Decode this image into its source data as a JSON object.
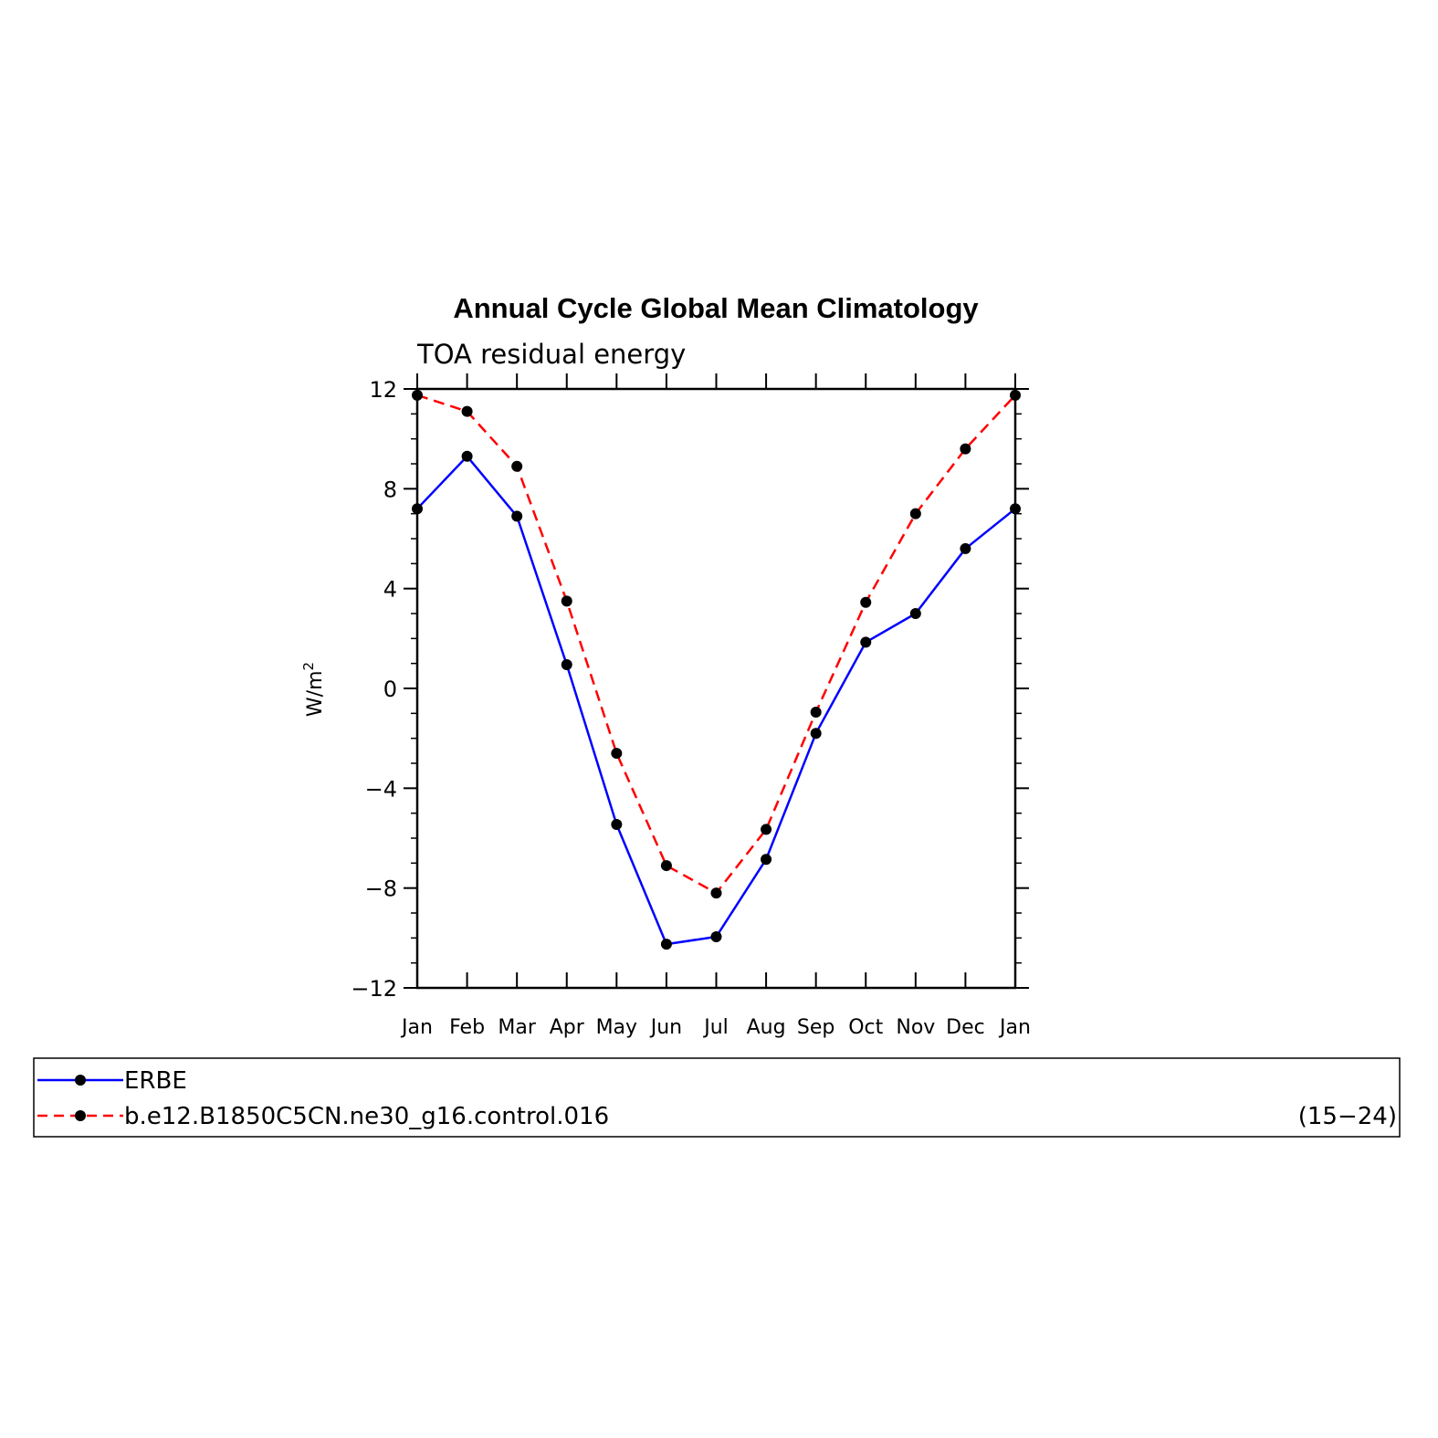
{
  "chart_data": {
    "type": "line",
    "title": "Annual Cycle Global Mean Climatology",
    "subtitle": "TOA residual energy",
    "ylabel": "W/m",
    "ylabel_superscript": "2",
    "xlabel": "",
    "categories": [
      "Jan",
      "Feb",
      "Mar",
      "Apr",
      "May",
      "Jun",
      "Jul",
      "Aug",
      "Sep",
      "Oct",
      "Nov",
      "Dec",
      "Jan"
    ],
    "ylim": [
      -12,
      12
    ],
    "yticks": [
      12,
      8,
      4,
      0,
      -4,
      -8,
      -12
    ],
    "ytick_labels": [
      "12",
      "8",
      "4",
      "0",
      "−4",
      "−8",
      "−12"
    ],
    "grid": false,
    "legend_placement": "bottom",
    "series": [
      {
        "name": "ERBE",
        "color": "#0000ff",
        "style": "solid",
        "values": [
          7.2,
          9.3,
          6.9,
          0.95,
          -5.45,
          -10.25,
          -9.95,
          -6.85,
          -1.8,
          1.85,
          3.0,
          5.6,
          7.2
        ]
      },
      {
        "name": "b.e12.B1850C5CN.ne30_g16.control.016",
        "note": "(15−24)",
        "color": "#ff0000",
        "style": "dashed",
        "values": [
          11.75,
          11.1,
          8.9,
          3.5,
          -2.6,
          -7.1,
          -8.2,
          -5.65,
          -0.95,
          3.45,
          7.0,
          9.6,
          11.75
        ]
      }
    ]
  }
}
